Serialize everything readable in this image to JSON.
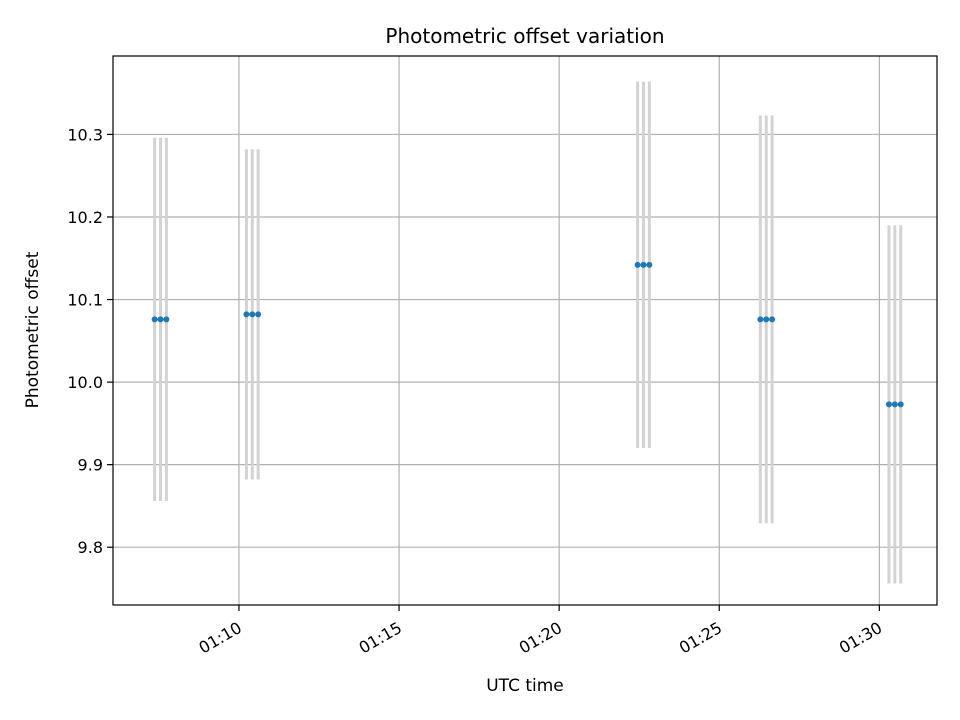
{
  "chart_data": {
    "type": "scatter",
    "title": "Photometric offset variation",
    "xlabel": "UTC time",
    "ylabel": "Photometric offset",
    "x_ticks": [
      "01:10",
      "01:15",
      "01:20",
      "01:25",
      "01:30"
    ],
    "y_ticks": [
      "9.8",
      "9.9",
      "10.0",
      "10.1",
      "10.2",
      "10.3"
    ],
    "xlim": [
      "01:06:04",
      "01:31:48"
    ],
    "ylim": [
      9.73,
      10.395
    ],
    "grid": true,
    "legend": "none",
    "colors": {
      "point": "#1f77b4",
      "errorbar": "#d3d3d3",
      "grid": "#b0b0b0"
    },
    "series": [
      {
        "points": [
          {
            "x": "01:07:22",
            "y": 10.076,
            "yerr": 0.22
          },
          {
            "x": "01:07:33",
            "y": 10.076,
            "yerr": 0.22
          },
          {
            "x": "01:07:44",
            "y": 10.076,
            "yerr": 0.22
          },
          {
            "x": "01:10:14",
            "y": 10.082,
            "yerr": 0.2
          },
          {
            "x": "01:10:25",
            "y": 10.082,
            "yerr": 0.2
          },
          {
            "x": "01:10:36",
            "y": 10.082,
            "yerr": 0.2
          },
          {
            "x": "01:22:27",
            "y": 10.142,
            "yerr": 0.222
          },
          {
            "x": "01:22:38",
            "y": 10.142,
            "yerr": 0.222
          },
          {
            "x": "01:22:49",
            "y": 10.142,
            "yerr": 0.222
          },
          {
            "x": "01:26:17",
            "y": 10.076,
            "yerr": 0.247
          },
          {
            "x": "01:26:28",
            "y": 10.076,
            "yerr": 0.247
          },
          {
            "x": "01:26:39",
            "y": 10.076,
            "yerr": 0.247
          },
          {
            "x": "01:30:18",
            "y": 9.973,
            "yerr": 0.217
          },
          {
            "x": "01:30:29",
            "y": 9.973,
            "yerr": 0.217
          },
          {
            "x": "01:30:40",
            "y": 9.973,
            "yerr": 0.217
          }
        ]
      }
    ]
  }
}
